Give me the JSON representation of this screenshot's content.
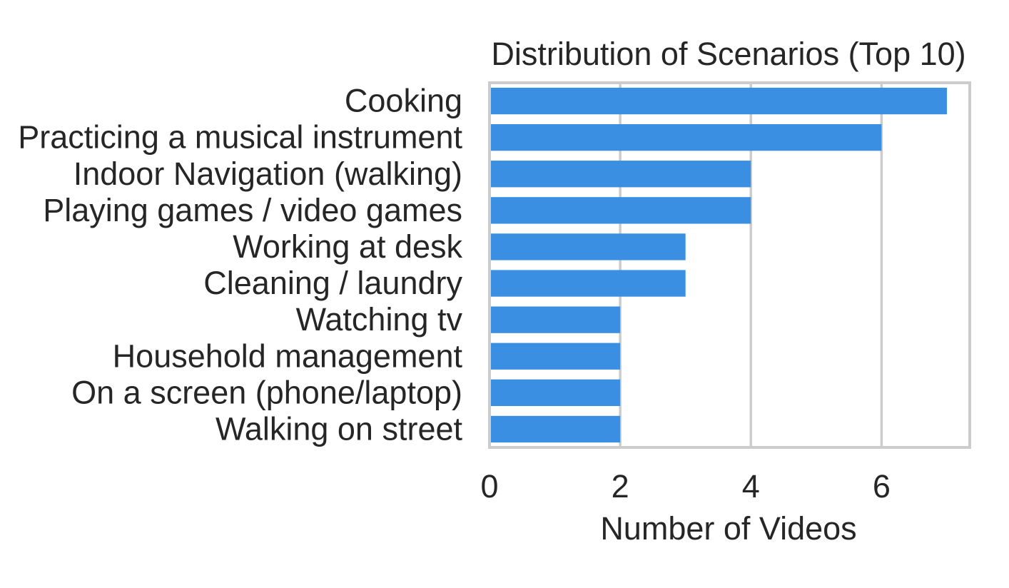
{
  "chart_data": {
    "type": "bar",
    "orientation": "horizontal",
    "title": "Distribution of Scenarios (Top 10)",
    "xlabel": "Number of Videos",
    "ylabel": "",
    "categories": [
      "Cooking",
      "Practicing a musical instrument",
      "Indoor Navigation (walking)",
      "Playing games / video games",
      "Working at desk",
      "Cleaning / laundry",
      "Watching tv",
      "Household management",
      "On a screen (phone/laptop)",
      "Walking on street"
    ],
    "values": [
      7,
      6,
      4,
      4,
      3,
      3,
      2,
      2,
      2,
      2
    ],
    "xlim": [
      0,
      7.35
    ],
    "xticks": [
      0,
      2,
      4,
      6
    ],
    "grid": "vertical",
    "legend": "none",
    "colors": {
      "bar": "#3a8fe3",
      "grid": "#cccccc",
      "frame": "#cccccc",
      "text": "#262626"
    }
  }
}
